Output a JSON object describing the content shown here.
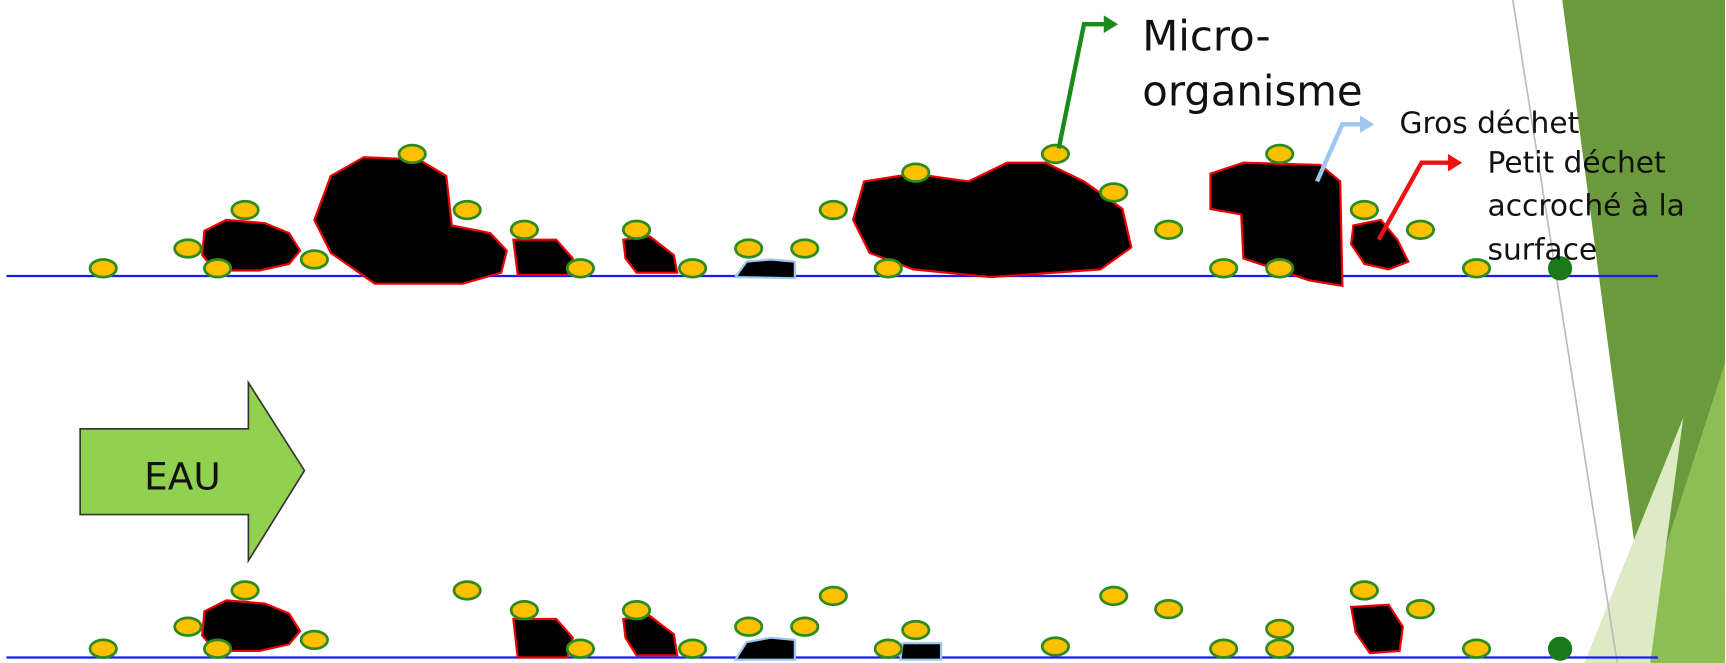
{
  "annotations": {
    "micro_organisme": [
      "Micro-",
      "organisme"
    ],
    "gros_dechet": "Gros déchet",
    "petit_dechet": [
      "Petit déchet",
      "accroché à la",
      "surface"
    ]
  },
  "flow_arrow": "EAU"
}
